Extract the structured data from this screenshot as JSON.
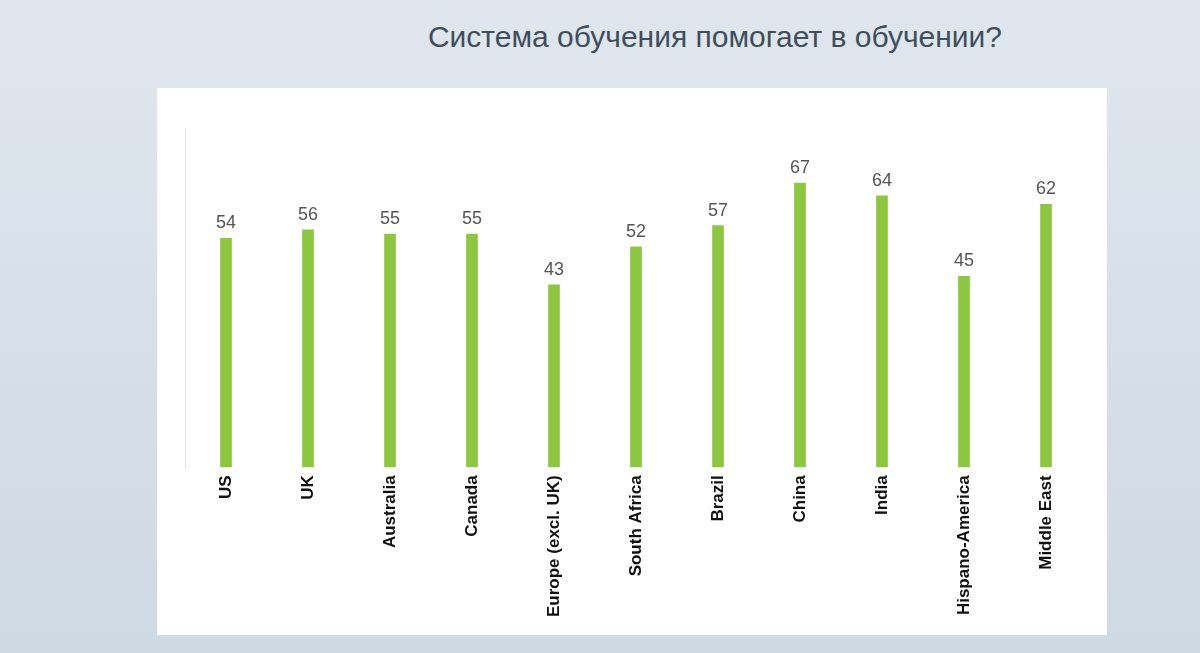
{
  "chart_data": {
    "type": "bar",
    "title": "Система обучения помогает в обучении?",
    "categories": [
      "US",
      "UK",
      "Australia",
      "Canada",
      "Europe (excl. UK)",
      "South Africa",
      "Brazil",
      "China",
      "India",
      "Hispano-America",
      "Middle East"
    ],
    "values": [
      54,
      56,
      55,
      55,
      43,
      52,
      57,
      67,
      64,
      45,
      62
    ],
    "color": "#8dc63f",
    "ylim": [
      0,
      80
    ],
    "grid": false,
    "data_labels": true,
    "tick_labels": "x"
  }
}
